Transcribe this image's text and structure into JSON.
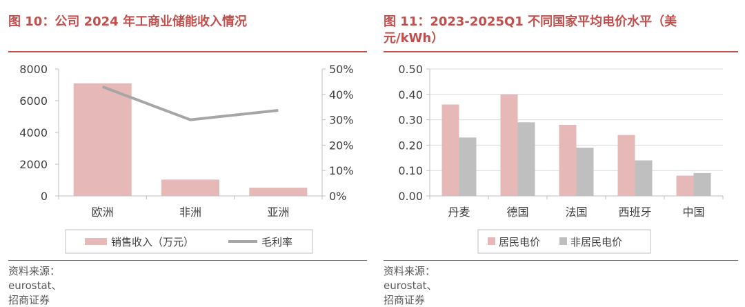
{
  "left": {
    "title": "图 10：公司 2024 年工商业储能收入情况",
    "source": "资料来源：eurostat、招商证券",
    "chart_data": {
      "type": "bar",
      "categories": [
        "欧洲",
        "非洲",
        "亚洲"
      ],
      "series": [
        {
          "name": "销售收入（万元）",
          "type": "bar",
          "axis": "left",
          "values": [
            7100,
            1030,
            520
          ],
          "color": "#e6b9b8"
        },
        {
          "name": "毛利率",
          "type": "line",
          "axis": "right",
          "values": [
            43,
            30,
            33.7
          ],
          "color": "#a6a6a6"
        }
      ],
      "ylim": [
        0,
        8000
      ],
      "yticks": [
        "0",
        "2000",
        "4000",
        "6000",
        "8000"
      ],
      "y2lim": [
        0,
        50
      ],
      "y2ticks": [
        "0%",
        "10%",
        "20%",
        "30%",
        "40%",
        "50%"
      ],
      "grid": false,
      "legend": "bottom"
    }
  },
  "right": {
    "title": "图 11：2023-2025Q1 不同国家平均电价水平（美元/kWh）",
    "source": "资料来源：eurostat、招商证券",
    "chart_data": {
      "type": "bar",
      "categories": [
        "丹麦",
        "德国",
        "法国",
        "西班牙",
        "中国"
      ],
      "series": [
        {
          "name": "居民电价",
          "values": [
            0.36,
            0.4,
            0.28,
            0.24,
            0.08
          ],
          "color": "#e6b9b8"
        },
        {
          "name": "非居民电价",
          "values": [
            0.23,
            0.29,
            0.19,
            0.14,
            0.09
          ],
          "color": "#bfbfbf"
        }
      ],
      "ylim": [
        0,
        0.5
      ],
      "yticks": [
        "0.00",
        "0.10",
        "0.20",
        "0.30",
        "0.40",
        "0.50"
      ],
      "grid": true,
      "legend": "bottom"
    }
  }
}
